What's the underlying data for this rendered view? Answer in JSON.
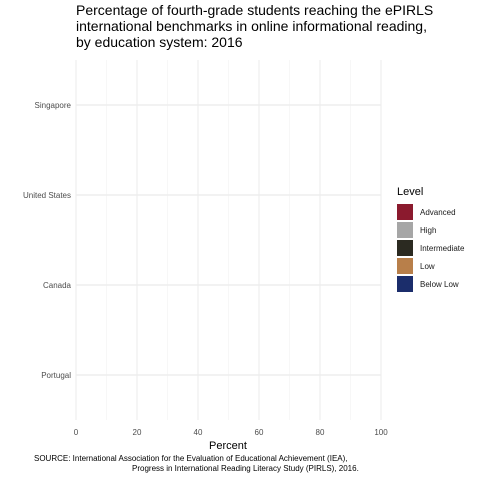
{
  "chart_data": {
    "type": "bar",
    "orientation": "horizontal",
    "stacked": true,
    "title": [
      "Percentage of fourth-grade students reaching the ePIRLS",
      "international benchmarks in online informational reading,",
      "by education system: 2016"
    ],
    "xlabel": "Percent",
    "ylabel": "",
    "xlim": [
      0,
      100
    ],
    "x_ticks": [
      0,
      20,
      40,
      60,
      80,
      100
    ],
    "categories": [
      "Singapore",
      "United States",
      "Canada",
      "Portugal"
    ],
    "legend": {
      "title": "Level",
      "position": "right",
      "entries": [
        {
          "label": "Advanced",
          "color": "#8b1a2e"
        },
        {
          "label": "High",
          "color": "#a6a6a6"
        },
        {
          "label": "Intermediate",
          "color": "#2b2a21"
        },
        {
          "label": "Low",
          "color": "#b87f4a"
        },
        {
          "label": "Below Low",
          "color": "#1b2d6b"
        }
      ]
    },
    "series": [
      {
        "name": "Advanced",
        "values": [
          0,
          0,
          0,
          0
        ]
      },
      {
        "name": "High",
        "values": [
          0,
          0,
          0,
          0
        ]
      },
      {
        "name": "Intermediate",
        "values": [
          0,
          0,
          0,
          0
        ]
      },
      {
        "name": "Low",
        "values": [
          0,
          0,
          0,
          0
        ]
      },
      {
        "name": "Below Low",
        "values": [
          0,
          0,
          0,
          0
        ]
      }
    ],
    "grid": true,
    "source": [
      "SOURCE: International Association for the Evaluation of Educational Achievement (IEA),",
      "Progress in International Reading Literacy Study (PIRLS), 2016."
    ]
  }
}
